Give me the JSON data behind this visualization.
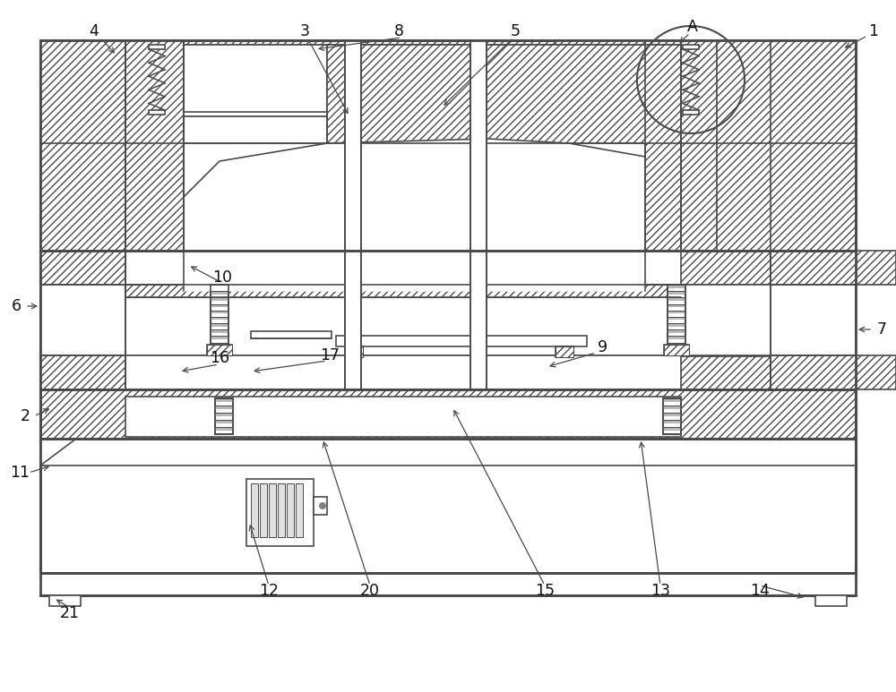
{
  "bg": "#ffffff",
  "lc": "#4a4a4a",
  "lw": 1.2,
  "lw_thick": 2.0,
  "fig_w": 10.0,
  "fig_h": 7.73,
  "dpi": 100
}
